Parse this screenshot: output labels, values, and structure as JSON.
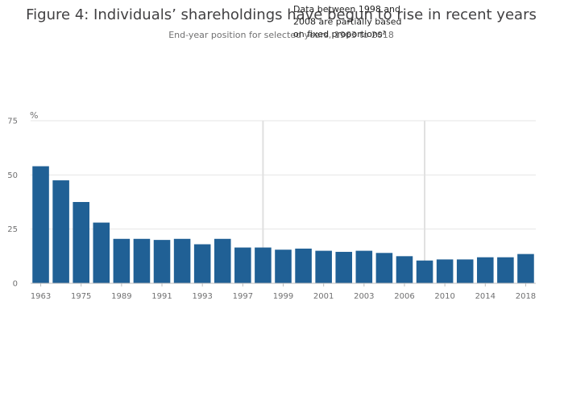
{
  "chart_data": {
    "type": "bar",
    "title": "Figure 4: Individuals’ shareholdings have begun to rise in recent years",
    "subtitle": "End-year position for selected years, 1963 to 2018",
    "ylabel": "%",
    "xlabel": "",
    "ylim": [
      0,
      75
    ],
    "yticks": [
      0,
      25,
      50,
      75
    ],
    "grid": true,
    "color": "#206095",
    "categories": [
      "1963",
      "1969",
      "1975",
      "1981",
      "1989",
      "1990",
      "1991",
      "1992",
      "1993",
      "1994",
      "1997",
      "1998",
      "1999",
      "2000",
      "2001",
      "2002",
      "2003",
      "2004",
      "2006",
      "2008",
      "2010",
      "2012",
      "2014",
      "2016",
      "2018"
    ],
    "tick_labels": [
      "1963",
      "1975",
      "1989",
      "1991",
      "1993",
      "1997",
      "1999",
      "2001",
      "2003",
      "2006",
      "2010",
      "2014",
      "2018"
    ],
    "values": [
      54,
      47.5,
      37.5,
      28,
      20.5,
      20.5,
      20,
      20.5,
      18,
      20.5,
      16.5,
      16.5,
      15.5,
      16,
      15,
      14.5,
      15,
      14,
      12.5,
      10.5,
      11,
      11,
      12,
      12,
      13.5
    ],
    "annotation": {
      "lines": [
        "Data between 1998 and",
        "2008 are partially based",
        "on fixed proportions²"
      ],
      "range": [
        "1998",
        "2008"
      ]
    }
  }
}
